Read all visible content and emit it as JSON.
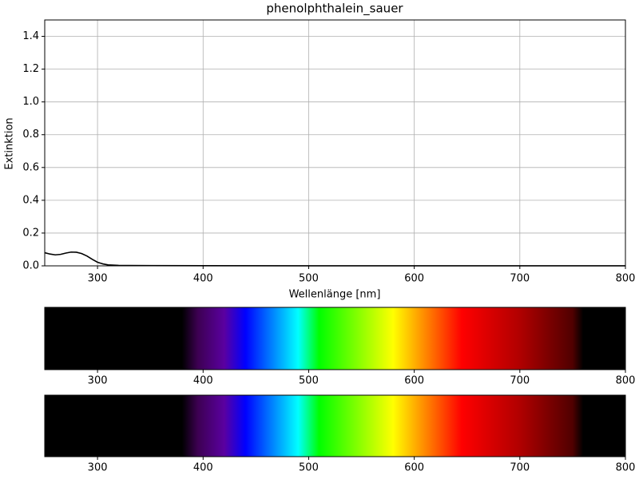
{
  "chart_data": [
    {
      "type": "line",
      "title": "phenolphthalein_sauer",
      "x_label": "Wellenlänge [nm]",
      "y_label": "Extinktion",
      "x": [
        250,
        255,
        260,
        265,
        270,
        275,
        280,
        285,
        290,
        295,
        300,
        305,
        310,
        320,
        330,
        350,
        400,
        500,
        600,
        700,
        800
      ],
      "series": [
        {
          "color": "#000000",
          "values": [
            0.08,
            0.072,
            0.067,
            0.07,
            0.078,
            0.084,
            0.083,
            0.075,
            0.06,
            0.04,
            0.022,
            0.012,
            0.006,
            0.003,
            0.002,
            0.0015,
            0.001,
            0.0005,
            0.0003,
            0.0002,
            0.0001
          ]
        }
      ],
      "xlim": [
        250,
        800
      ],
      "ylim": [
        0,
        1.5
      ],
      "xticks": [
        300,
        400,
        500,
        600,
        700,
        800
      ],
      "yticks": [
        {
          "value": 0,
          "label": "0.0"
        },
        {
          "value": 0.2,
          "label": "0.2"
        },
        {
          "value": 0.4,
          "label": "0.4"
        },
        {
          "value": 0.6,
          "label": "0.6"
        },
        {
          "value": 0.8,
          "label": "0.8"
        },
        {
          "value": 1,
          "label": "1.0"
        },
        {
          "value": 1.2,
          "label": "1.2"
        },
        {
          "value": 1.4,
          "label": "1.4"
        }
      ],
      "grid": true
    },
    {
      "type": "spectrum",
      "xlim": [
        250,
        800
      ],
      "xticks": [
        300,
        400,
        500,
        600,
        700,
        800
      ],
      "stops": [
        250,
        380,
        395,
        420,
        440,
        490,
        510,
        580,
        645,
        700,
        750,
        760,
        800
      ],
      "colors": [
        "#000000",
        "#000000",
        "#3d0052",
        "#5a00a0",
        "#0000ff",
        "#00ffff",
        "#00ff00",
        "#ffff00",
        "#ff0000",
        "#b00000",
        "#500000",
        "#000000",
        "#000000"
      ]
    },
    {
      "type": "spectrum",
      "xlim": [
        250,
        800
      ],
      "xticks": [
        300,
        400,
        500,
        600,
        700,
        800
      ],
      "stops": [
        250,
        380,
        395,
        420,
        440,
        490,
        510,
        580,
        645,
        700,
        750,
        760,
        800
      ],
      "colors": [
        "#000000",
        "#000000",
        "#3d0052",
        "#5a00a0",
        "#0000ff",
        "#00ffff",
        "#00ff00",
        "#ffff00",
        "#ff0000",
        "#b00000",
        "#500000",
        "#000000",
        "#000000"
      ]
    }
  ]
}
